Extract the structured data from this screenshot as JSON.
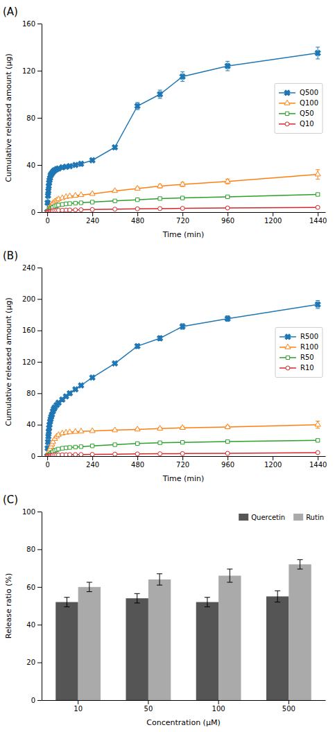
{
  "chart_data": [
    {
      "type": "line",
      "title": "(A)",
      "x_label": "Time (min)",
      "y_label": "Cumulative released amount (μg)",
      "xlim": [
        -30,
        1480
      ],
      "xticks": [
        0,
        240,
        480,
        720,
        960,
        1200,
        1440
      ],
      "ylim": [
        0,
        160
      ],
      "yticks": [
        0,
        40,
        80,
        120,
        160
      ],
      "grid": false,
      "legend": "right",
      "series": [
        {
          "name": "Q500",
          "marker": "x",
          "line_style": "solid",
          "x": [
            0,
            2,
            4,
            6,
            8,
            10,
            12,
            15,
            18,
            21,
            25,
            30,
            35,
            40,
            50,
            60,
            80,
            100,
            120,
            150,
            180,
            240,
            360,
            480,
            600,
            720,
            960,
            1440
          ],
          "values": [
            0,
            8,
            14,
            18,
            22,
            25,
            27,
            29,
            31,
            32,
            33,
            34,
            35,
            35.5,
            36.5,
            37,
            38,
            38.5,
            39,
            40,
            41,
            44,
            55,
            90,
            100,
            115,
            124,
            135
          ],
          "errors": [
            0,
            0,
            0,
            0,
            0,
            0,
            0,
            0,
            0,
            0,
            0,
            0,
            0,
            0,
            0,
            0,
            0,
            0,
            0,
            0,
            0,
            0.5,
            1.0,
            3.0,
            3.5,
            4.0,
            4.0,
            5.0
          ]
        },
        {
          "name": "Q100",
          "marker": "triangle",
          "line_style": "solid",
          "x": [
            0,
            5,
            10,
            15,
            20,
            25,
            30,
            40,
            50,
            60,
            80,
            100,
            120,
            150,
            180,
            240,
            360,
            480,
            600,
            720,
            960,
            1440
          ],
          "values": [
            0,
            1.5,
            3.0,
            4.5,
            5.5,
            6.5,
            7.5,
            9.0,
            10.0,
            11.0,
            12.0,
            13.0,
            13.5,
            14.0,
            14.5,
            15.5,
            18.0,
            20.0,
            22.0,
            23.5,
            26.0,
            32.0
          ],
          "errors": [
            0,
            0,
            0,
            0,
            0,
            0,
            0,
            0,
            0,
            0,
            0,
            0,
            0,
            0,
            0,
            0.5,
            0.8,
            1.2,
            1.5,
            1.8,
            2.0,
            4.0
          ]
        },
        {
          "name": "Q50",
          "marker": "square",
          "line_style": "solid",
          "x": [
            0,
            5,
            10,
            15,
            20,
            25,
            30,
            40,
            50,
            60,
            80,
            100,
            120,
            150,
            180,
            240,
            360,
            480,
            600,
            720,
            960,
            1440
          ],
          "values": [
            0,
            0.8,
            1.5,
            2.2,
            3.0,
            3.5,
            4.0,
            5.0,
            5.5,
            6.0,
            6.5,
            7.0,
            7.3,
            7.6,
            7.9,
            8.5,
            9.5,
            10.5,
            11.5,
            12.0,
            13.0,
            15.0
          ],
          "errors": [
            0,
            0,
            0,
            0,
            0,
            0,
            0,
            0,
            0,
            0,
            0,
            0,
            0,
            0,
            0,
            0.3,
            0.4,
            0.6,
            0.7,
            0.8,
            0.9,
            1.2
          ]
        },
        {
          "name": "Q10",
          "marker": "circle",
          "line_style": "solid",
          "x": [
            0,
            5,
            10,
            15,
            20,
            25,
            30,
            40,
            50,
            60,
            80,
            100,
            120,
            150,
            180,
            240,
            360,
            480,
            600,
            720,
            960,
            1440
          ],
          "values": [
            0,
            0.3,
            0.5,
            0.7,
            0.9,
            1.0,
            1.1,
            1.3,
            1.4,
            1.5,
            1.6,
            1.7,
            1.8,
            1.9,
            2.0,
            2.2,
            2.5,
            2.8,
            3.0,
            3.2,
            3.5,
            4.0
          ],
          "errors": [
            0,
            0,
            0,
            0,
            0,
            0,
            0,
            0,
            0,
            0,
            0,
            0,
            0,
            0,
            0,
            0.1,
            0.1,
            0.2,
            0.2,
            0.2,
            0.2,
            0.4
          ]
        }
      ]
    },
    {
      "type": "line",
      "title": "(B)",
      "x_label": "Time (min)",
      "y_label": "Cumulative released amount (μg)",
      "xlim": [
        -30,
        1480
      ],
      "xticks": [
        0,
        240,
        480,
        720,
        960,
        1200,
        1440
      ],
      "ylim": [
        0,
        240
      ],
      "yticks": [
        0,
        40,
        80,
        120,
        160,
        200,
        240
      ],
      "grid": false,
      "legend": "right",
      "series": [
        {
          "name": "R500",
          "marker": "x",
          "line_style": "solid",
          "x": [
            0,
            2,
            4,
            6,
            8,
            10,
            12,
            15,
            18,
            21,
            25,
            30,
            35,
            40,
            50,
            60,
            80,
            100,
            120,
            150,
            180,
            240,
            360,
            480,
            600,
            720,
            960,
            1440
          ],
          "values": [
            0,
            10,
            18,
            25,
            31,
            36,
            40,
            44,
            47,
            50,
            53,
            57,
            60,
            62,
            65,
            68,
            72,
            76,
            80,
            85,
            90,
            100,
            118,
            140,
            150,
            165,
            175,
            193
          ],
          "errors": [
            0,
            0,
            0,
            0,
            0,
            0,
            0,
            0,
            0,
            0,
            0,
            0,
            0,
            0,
            0,
            0,
            0,
            0,
            0,
            0,
            0,
            0.5,
            1.0,
            2.5,
            3.0,
            3.5,
            3.5,
            5.0
          ]
        },
        {
          "name": "R100",
          "marker": "triangle",
          "line_style": "solid",
          "x": [
            0,
            5,
            10,
            15,
            20,
            25,
            30,
            40,
            50,
            60,
            80,
            100,
            120,
            150,
            180,
            240,
            360,
            480,
            600,
            720,
            960,
            1440
          ],
          "values": [
            0,
            3,
            6,
            9,
            12,
            15,
            18,
            22,
            25,
            27,
            29,
            30,
            30.5,
            31,
            31.5,
            32,
            33,
            34,
            35,
            36,
            37,
            40
          ],
          "errors": [
            0,
            0,
            0,
            0,
            0,
            0,
            0,
            0,
            0,
            0,
            0,
            0,
            0,
            0,
            0,
            0.5,
            0.8,
            1.2,
            1.5,
            1.8,
            2.0,
            4.5
          ]
        },
        {
          "name": "R50",
          "marker": "square",
          "line_style": "solid",
          "x": [
            0,
            5,
            10,
            15,
            20,
            25,
            30,
            40,
            50,
            60,
            80,
            100,
            120,
            150,
            180,
            240,
            360,
            480,
            600,
            720,
            960,
            1440
          ],
          "values": [
            0,
            0.8,
            1.8,
            2.8,
            3.8,
            4.5,
            5.5,
            7.0,
            8.0,
            9.0,
            10.0,
            10.5,
            11.0,
            11.5,
            12.0,
            13.0,
            14.5,
            16.0,
            17.0,
            17.5,
            18.5,
            20.0
          ],
          "errors": [
            0,
            0,
            0,
            0,
            0,
            0,
            0,
            0,
            0,
            0,
            0,
            0,
            0,
            0,
            0,
            0.3,
            0.4,
            0.7,
            0.8,
            0.9,
            1.0,
            1.5
          ]
        },
        {
          "name": "R10",
          "marker": "circle",
          "line_style": "solid",
          "x": [
            0,
            5,
            10,
            15,
            20,
            25,
            30,
            40,
            50,
            60,
            80,
            100,
            120,
            150,
            180,
            240,
            360,
            480,
            600,
            720,
            960,
            1440
          ],
          "values": [
            0,
            0.3,
            0.5,
            0.7,
            0.9,
            1.0,
            1.1,
            1.3,
            1.4,
            1.5,
            1.6,
            1.7,
            1.8,
            1.9,
            2.0,
            2.2,
            2.5,
            2.8,
            3.0,
            3.2,
            3.5,
            4.5
          ],
          "errors": [
            0,
            0,
            0,
            0,
            0,
            0,
            0,
            0,
            0,
            0,
            0,
            0,
            0,
            0,
            0,
            0.1,
            0.1,
            0.2,
            0.2,
            0.2,
            0.2,
            0.4
          ]
        }
      ]
    },
    {
      "type": "bar",
      "title": "(C)",
      "x_label": "Concentration (μM)",
      "y_label": "Release ratio (%)",
      "categories": [
        "10",
        "50",
        "100",
        "500"
      ],
      "ylim": [
        0,
        100
      ],
      "yticks": [
        0,
        20,
        40,
        60,
        80,
        100
      ],
      "grid": false,
      "legend": "upper right",
      "series": [
        {
          "name": "Quercetin",
          "color": "#555555",
          "values": [
            52,
            54,
            52,
            55
          ],
          "errors": [
            2.5,
            2.5,
            2.5,
            3.0
          ]
        },
        {
          "name": "Rutin",
          "color": "#aaaaaa",
          "values": [
            60,
            64,
            66,
            72
          ],
          "errors": [
            2.5,
            3.0,
            3.5,
            2.5
          ]
        }
      ]
    }
  ]
}
